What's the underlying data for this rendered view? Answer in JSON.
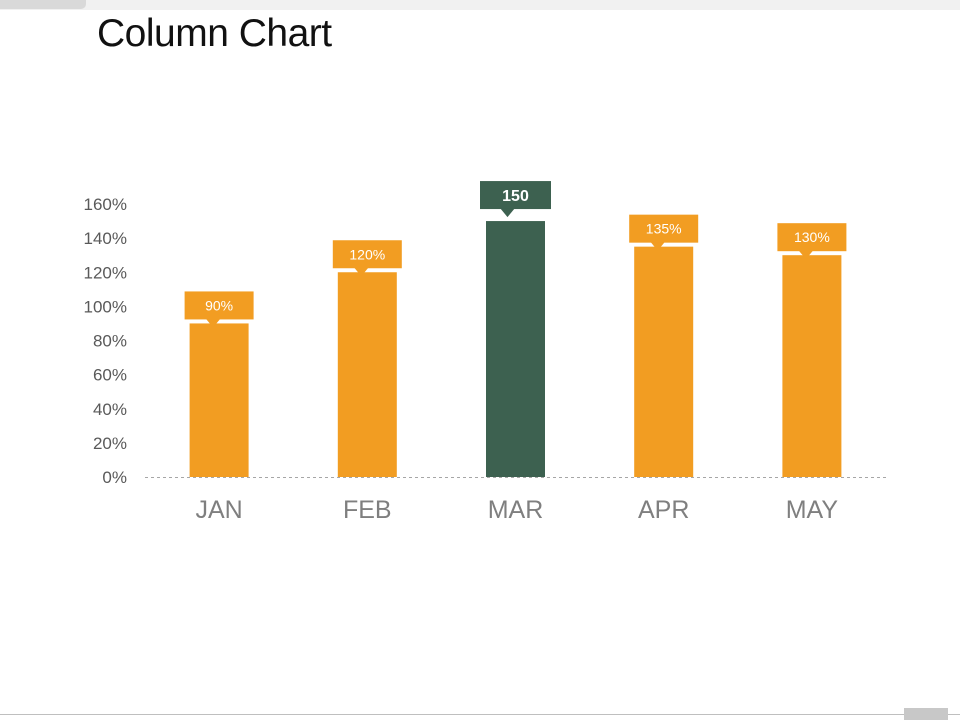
{
  "header": {
    "title": "Column Chart"
  },
  "chart_data": {
    "type": "bar",
    "categories": [
      "JAN",
      "FEB",
      "MAR",
      "APR",
      "MAY"
    ],
    "values": [
      90,
      120,
      150,
      135,
      130
    ],
    "data_labels": [
      "90%",
      "120%",
      "150",
      "135%",
      "130%"
    ],
    "highlight_index": 2,
    "title": "Column Chart",
    "xlabel": "",
    "ylabel": "",
    "ylim": [
      0,
      160
    ],
    "yticks": [
      "0%",
      "20%",
      "40%",
      "60%",
      "80%",
      "100%",
      "120%",
      "140%",
      "160%"
    ],
    "ytick_values": [
      0,
      20,
      40,
      60,
      80,
      100,
      120,
      140,
      160
    ],
    "grid": false,
    "baseline_style": "dashed",
    "colors": {
      "bar": "#F29D22",
      "highlight": "#3D6150",
      "label_text": "#ffffff",
      "axis_text": "#595959",
      "category_text": "#7f7f7f"
    }
  }
}
